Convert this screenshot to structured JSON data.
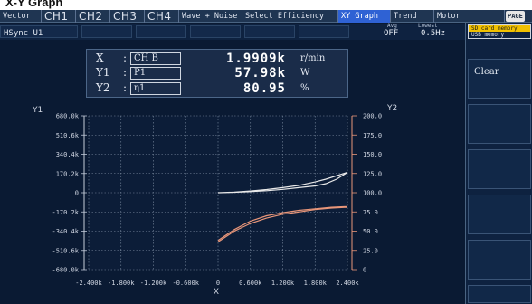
{
  "page_title": "X-Y Graph",
  "tabs": [
    {
      "label": "Vector",
      "style": "small",
      "active": false
    },
    {
      "label": "CH1",
      "style": "big",
      "active": false
    },
    {
      "label": "CH2",
      "style": "big",
      "active": false
    },
    {
      "label": "CH3",
      "style": "big",
      "active": false
    },
    {
      "label": "CH4",
      "style": "big",
      "active": false
    },
    {
      "label": "Wave + Noise",
      "style": "small",
      "active": false
    },
    {
      "label": "Select Efficiency",
      "style": "small",
      "active": false
    },
    {
      "label": "XY Graph",
      "style": "small",
      "active": true
    },
    {
      "label": "Trend",
      "style": "small",
      "active": false
    },
    {
      "label": "Motor",
      "style": "small",
      "active": false
    }
  ],
  "page_badge": "PAGE",
  "sync_source": "HSync U1",
  "avg": {
    "label": "Avg",
    "value": "OFF"
  },
  "lowest": {
    "label": "Lowest",
    "value": "0.5Hz"
  },
  "storage": {
    "top": "SD card memory",
    "bottom": "USB  memory"
  },
  "clear_label": "Clear",
  "readouts": [
    {
      "name": "X",
      "source": "CH B",
      "value": "1.9909k",
      "unit": "r/min"
    },
    {
      "name": "Y1",
      "source": "P1",
      "value": "57.98k",
      "unit": "W"
    },
    {
      "name": "Y2",
      "source": "η1",
      "value": "80.95",
      "unit": "%"
    }
  ],
  "colors": {
    "active_tab": "#2f62d4",
    "y1_curve": "#e8e8e8",
    "y2_curve": "#e8967a",
    "grid": "#7b8aa0",
    "storage_active": "#f0c000"
  },
  "chart_data": {
    "type": "scatter",
    "xlabel": "X",
    "y1label": "Y1",
    "y2label": "Y2",
    "x_ticks": [
      "-2.400k",
      "-1.800k",
      "-1.200k",
      "-0.600k",
      "0",
      "0.600k",
      "1.200k",
      "1.800k",
      "2.400k"
    ],
    "y1_ticks": [
      "680.0k",
      "510.6k",
      "340.4k",
      "170.2k",
      "0",
      "-170.2k",
      "-340.4k",
      "-510.6k",
      "-680.0k"
    ],
    "y2_ticks": [
      "200.0",
      "175.0",
      "150.0",
      "125.0",
      "100.0",
      "75.0",
      "50.0",
      "25.0",
      "0"
    ],
    "xlim": [
      -2400,
      2400
    ],
    "y1lim": [
      -680,
      680
    ],
    "y2lim": [
      0,
      200
    ],
    "grid": true,
    "series": [
      {
        "axis": "y1",
        "x": [
          0,
          300,
          600,
          900,
          1200,
          1500,
          1800,
          2000,
          2200,
          2400,
          2200,
          2000,
          1800,
          1500,
          1200,
          900,
          600,
          300,
          0
        ],
        "y": [
          0,
          5,
          15,
          28,
          45,
          65,
          95,
          120,
          150,
          180,
          120,
          80,
          60,
          45,
          30,
          18,
          10,
          4,
          0
        ]
      },
      {
        "axis": "y2",
        "x": [
          0,
          300,
          600,
          900,
          1200,
          1500,
          1800,
          2100,
          2400
        ],
        "y": [
          36,
          50,
          60,
          67,
          72,
          75,
          78,
          80,
          81
        ]
      },
      {
        "axis": "y2",
        "x": [
          0,
          300,
          600,
          900,
          1200,
          1500,
          1800,
          2100,
          2400
        ],
        "y": [
          38,
          52,
          63,
          70,
          74,
          77,
          79,
          81,
          82
        ]
      }
    ]
  }
}
